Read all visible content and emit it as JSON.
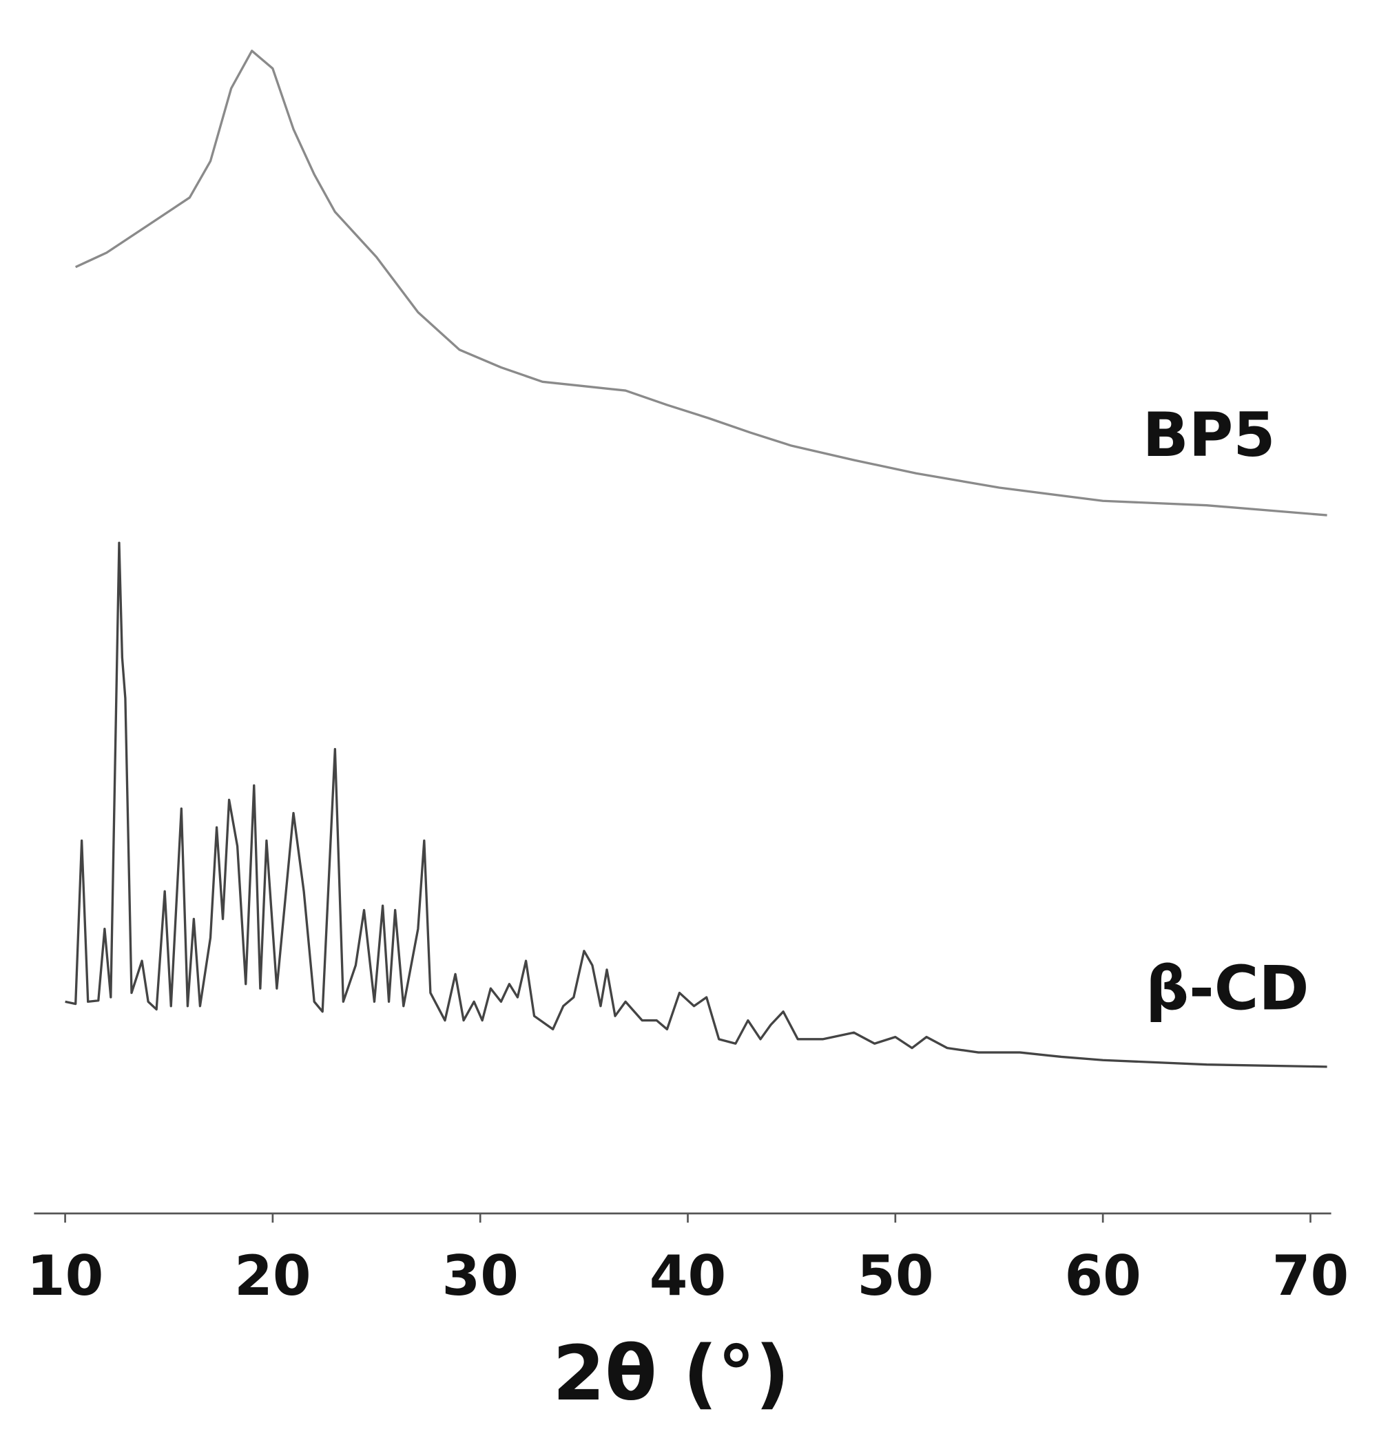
{
  "chart_data": {
    "type": "line",
    "xlabel": "2θ (°)",
    "xlim": [
      8.5,
      71
    ],
    "xticks": [
      10,
      20,
      30,
      40,
      50,
      60,
      70
    ],
    "ylim": [
      0,
      110
    ],
    "series": [
      {
        "name": "BP5",
        "color": "#8a8a8a",
        "x": [
          10.5,
          12,
          14,
          16,
          17,
          18,
          19,
          20,
          21,
          22,
          23,
          25,
          27,
          29,
          31,
          33,
          35,
          37,
          39,
          41,
          43,
          45,
          48,
          51,
          55,
          60,
          65,
          70.8
        ],
        "values": [
          85.8,
          87.1,
          89.6,
          92.1,
          95.4,
          102,
          105.4,
          103.8,
          98.3,
          94.2,
          90.8,
          86.7,
          81.7,
          78.3,
          76.7,
          75.4,
          75,
          74.6,
          73.3,
          72.1,
          70.8,
          69.6,
          68.3,
          67.1,
          65.8,
          64.6,
          64.2,
          63.3
        ]
      },
      {
        "name": "β-CD",
        "color": "#444444",
        "x": [
          10.0,
          10.5,
          10.8,
          11.1,
          11.6,
          11.9,
          12.2,
          12.6,
          12.75,
          12.9,
          13.2,
          13.7,
          14.0,
          14.4,
          14.8,
          15.1,
          15.6,
          15.9,
          16.2,
          16.5,
          17.0,
          17.3,
          17.6,
          17.9,
          18.3,
          18.7,
          19.1,
          19.4,
          19.7,
          20.2,
          21.0,
          21.5,
          22.0,
          22.4,
          23.0,
          23.4,
          24.0,
          24.4,
          24.9,
          25.3,
          25.6,
          25.9,
          26.3,
          27.0,
          27.3,
          27.6,
          28.3,
          28.8,
          29.2,
          29.7,
          30.1,
          30.5,
          31.0,
          31.4,
          31.8,
          32.2,
          32.6,
          33.5,
          34.0,
          34.5,
          35.0,
          35.4,
          35.8,
          36.1,
          36.5,
          37.0,
          37.8,
          38.5,
          39.0,
          39.6,
          40.3,
          40.9,
          41.5,
          42.3,
          42.9,
          43.5,
          44.0,
          44.6,
          45.3,
          46.5,
          48.0,
          49.0,
          50.0,
          50.8,
          51.5,
          52.5,
          54.0,
          56.0,
          58.0,
          60.0,
          65.0,
          70.8
        ],
        "values": [
          19.2,
          19.0,
          33.8,
          19.2,
          19.3,
          25.8,
          19.6,
          60.8,
          50.4,
          46.7,
          20.0,
          22.9,
          19.2,
          18.5,
          29.2,
          18.8,
          36.7,
          18.8,
          26.7,
          18.8,
          25.0,
          35.0,
          26.7,
          37.5,
          33.3,
          20.8,
          38.8,
          20.4,
          33.8,
          20.4,
          36.3,
          29.2,
          19.2,
          18.3,
          42.1,
          19.2,
          22.5,
          27.5,
          19.2,
          27.9,
          19.2,
          27.5,
          18.8,
          25.8,
          33.8,
          20.0,
          17.5,
          21.7,
          17.5,
          19.2,
          17.5,
          20.4,
          19.2,
          20.8,
          19.6,
          22.9,
          17.9,
          16.7,
          18.8,
          19.6,
          23.8,
          22.5,
          18.8,
          22.1,
          17.9,
          19.2,
          17.5,
          17.5,
          16.7,
          20.0,
          18.8,
          19.6,
          15.8,
          15.4,
          17.5,
          15.8,
          17.1,
          18.3,
          15.8,
          15.8,
          16.4,
          15.4,
          16.0,
          15.0,
          16.0,
          15.0,
          14.6,
          14.6,
          14.2,
          13.9,
          13.5,
          13.3
        ]
      }
    ]
  }
}
